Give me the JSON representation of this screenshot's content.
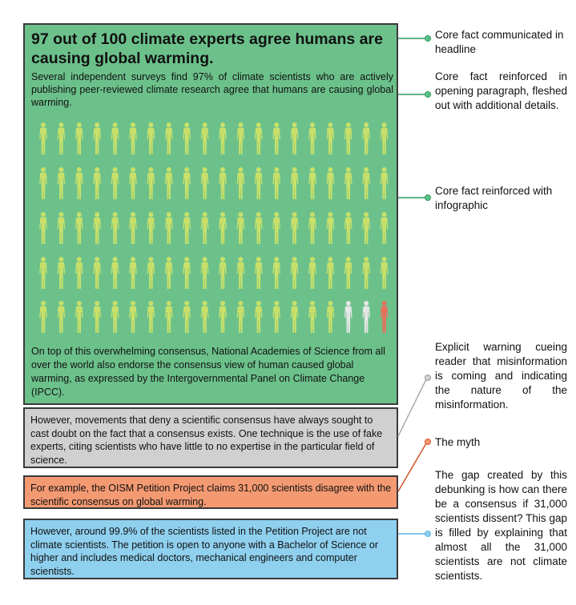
{
  "green_panel": {
    "headline": "97 out of 100 climate experts agree humans are causing global warming.",
    "intro": "Several independent surveys find 97% of climate scientists who are actively publishing peer-reviewed climate research agree that humans are causing global warming.",
    "closing": "On top of this overwhelming consensus, National Academies of Science from all over the world also endorse the consensus view of human caused global warming, as expressed by the Intergovernmental Panel on Climate Change (IPCC).",
    "infographic": {
      "rows": 5,
      "figures_per_row": 20,
      "agree_count": 97,
      "uncertain_count": 2,
      "disagree_count": 1,
      "colors": {
        "agree": "#c8e06a",
        "uncertain": "#e6e6e6",
        "disagree": "#e8705a"
      }
    }
  },
  "grey_panel": {
    "text": "However, movements that deny a scientific consensus have always sought to cast doubt on the fact that a consensus exists. One technique is the use of fake experts, citing scientists who have little to no expertise in the particular field of science."
  },
  "orange_panel": {
    "text": "For example, the OISM Petition Project claims 31,000 scientists disagree with the scientific consensus on global warming."
  },
  "blue_panel": {
    "text": "However, around 99.9% of the scientists listed in the Petition Project are not climate scientists. The petition is open to anyone with a Bachelor of Science or higher and includes medical doctors, mechanical engineers and computer scientists."
  },
  "annotations": {
    "headline": "Core fact communicated in headline",
    "opening": "Core fact reinforced in opening paragraph, fleshed out with additional details.",
    "infographic": "Core fact reinforced with infographic",
    "warning": "Explicit warning cueing reader that misinformation is coming and indicating the nature of the misinformation.",
    "myth": "The myth",
    "gap": "The gap created by this debunking is how can there be a consensus if 31,000 scientists dissent? This gap is filled by explaining that almost all the 31,000 scientists are not climate scientists."
  },
  "colors": {
    "green_panel": "#6cc18b",
    "green_connector": "#2f9a5e",
    "grey_connector": "#aaaaaa",
    "orange_connector": "#d4542c",
    "blue_connector": "#5ab6e4"
  }
}
